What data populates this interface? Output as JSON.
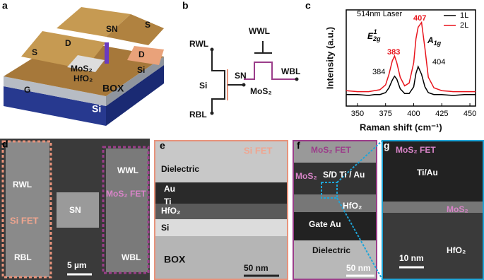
{
  "panel_labels": [
    "a",
    "b",
    "c",
    "d",
    "e",
    "f",
    "g"
  ],
  "schematic": {
    "labels": [
      "S",
      "D",
      "SN",
      "S",
      "D",
      "MoS₂",
      "HfO₂",
      "Si",
      "G",
      "BOX",
      "Si"
    ]
  },
  "circuit": {
    "labels": [
      "RWL",
      "WWL",
      "Si",
      "SN",
      "MoS₂",
      "WBL",
      "RBL"
    ]
  },
  "chart_data": {
    "type": "line",
    "xlabel": "Raman shift (cm⁻¹)",
    "ylabel": "Intensity (a.u.)",
    "x": [
      340,
      350,
      360,
      365,
      370,
      375,
      378,
      381,
      383,
      385,
      388,
      392,
      396,
      400,
      402,
      404,
      407,
      410,
      413,
      418,
      425,
      435,
      445,
      455
    ],
    "series": [
      {
        "name": "1L",
        "color": "#000000",
        "values": [
          0.12,
          0.12,
          0.11,
          0.12,
          0.12,
          0.14,
          0.19,
          0.27,
          0.31,
          0.28,
          0.18,
          0.13,
          0.13,
          0.2,
          0.34,
          0.41,
          0.33,
          0.2,
          0.14,
          0.12,
          0.12,
          0.11,
          0.12,
          0.12
        ]
      },
      {
        "name": "2L",
        "color": "#e8141c",
        "values": [
          0.16,
          0.15,
          0.15,
          0.16,
          0.17,
          0.22,
          0.33,
          0.47,
          0.52,
          0.45,
          0.3,
          0.21,
          0.24,
          0.45,
          0.7,
          0.82,
          0.87,
          0.6,
          0.3,
          0.19,
          0.16,
          0.15,
          0.15,
          0.15
        ]
      }
    ],
    "xlim": [
      340,
      455
    ],
    "ylim": [
      0,
      1
    ],
    "xticks": [
      350,
      375,
      400,
      425,
      450
    ],
    "legend": "upper right",
    "annotations": {
      "laser": "514nm Laser",
      "e2g": {
        "base": "E",
        "sub": "2g",
        "sup": "1"
      },
      "a1g": {
        "base": "A",
        "sub": "1g"
      },
      "peaks": [
        "383",
        "407",
        "384",
        "404"
      ]
    }
  },
  "sem": {
    "labels": [
      "RWL",
      "Si FET",
      "RBL",
      "SN",
      "WWL",
      "MoS₂ FET",
      "WBL",
      "5 µm"
    ]
  },
  "tem_si": {
    "labels": [
      "Si FET",
      "Dielectric",
      "Au",
      "Ti",
      "HfO₂",
      "Si",
      "BOX",
      "50 nm"
    ]
  },
  "tem_mos2": {
    "labels": [
      "MoS₂  FET",
      "MoS₂",
      "S/D Ti / Au",
      "HfO₂",
      "Gate Au",
      "Dielectric",
      "50 nm"
    ]
  },
  "tem_zoom": {
    "labels": [
      "MoS₂  FET",
      "Ti/Au",
      "MoS₂",
      "HfO₂",
      "10 nm"
    ]
  }
}
